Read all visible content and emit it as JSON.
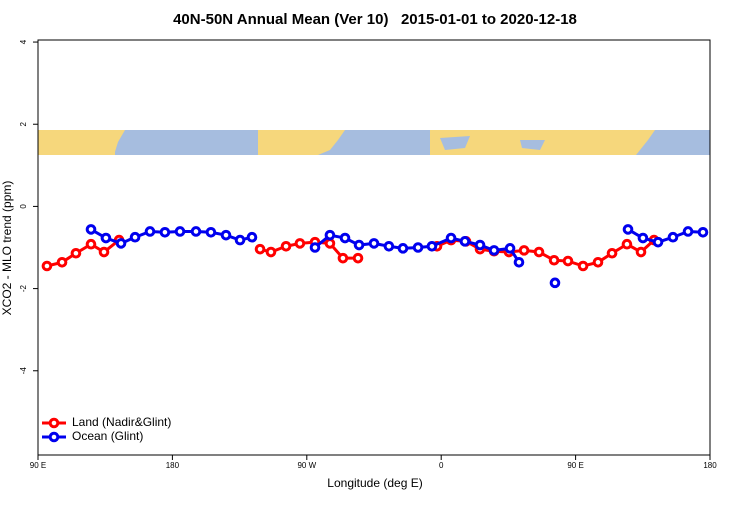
{
  "chart_data": {
    "type": "line",
    "title": "40N-50N Annual Mean (Ver 10)   2015-01-01 to 2020-12-18",
    "xlabel": "Longitude (deg E)",
    "ylabel": "XCO2 - MLO trend (ppm)",
    "xlim": [
      90,
      540
    ],
    "xticks": [
      {
        "value": 90,
        "label": "90 E"
      },
      {
        "value": 180,
        "label": "180"
      },
      {
        "value": 270,
        "label": "90 W"
      },
      {
        "value": 360,
        "label": "0"
      },
      {
        "value": 450,
        "label": "90 E"
      },
      {
        "value": 540,
        "label": "180"
      }
    ],
    "ylim": [
      -6.05,
      4.05
    ],
    "yticks": [
      4,
      2,
      0,
      -2,
      -4
    ],
    "grid": false,
    "legend": "bottom-left",
    "series": [
      {
        "name": "Land (Nadir&Glint)",
        "color": "#ff0000",
        "x": [
          96.0,
          106.1,
          115.4,
          125.5,
          134.2,
          144.3,
          null,
          238.7,
          246.0,
          256.1,
          265.4,
          275.5,
          285.5,
          294.2,
          304.3,
          null,
          357.2,
          366.6,
          376.6,
          386.0,
          395.4,
          405.4,
          415.5,
          425.5,
          435.6,
          444.9,
          455.0,
          465.0,
          474.4,
          484.4,
          493.8,
          502.5
        ],
        "values": [
          -1.45,
          -1.36,
          -1.14,
          -0.92,
          -1.11,
          -0.82,
          null,
          -1.04,
          -1.11,
          -0.97,
          -0.9,
          -0.87,
          -0.9,
          -1.26,
          -1.26,
          null,
          -0.97,
          -0.82,
          -0.85,
          -1.04,
          -1.09,
          -1.11,
          -1.07,
          -1.11,
          -1.31,
          -1.33,
          -1.45,
          -1.36,
          -1.14,
          -0.92,
          -1.11,
          -0.82
        ]
      },
      {
        "name": "Ocean (Glint)",
        "color": "#0000ee",
        "x": [
          125.5,
          135.5,
          145.6,
          155.0,
          165.0,
          175.0,
          185.1,
          195.8,
          205.8,
          215.9,
          225.3,
          233.3,
          null,
          275.5,
          285.5,
          295.6,
          305.0,
          315.0,
          325.0,
          334.4,
          344.5,
          353.8,
          366.6,
          375.9,
          386.0,
          395.4,
          406.1,
          412.1,
          null,
          436.2,
          null,
          485.1,
          495.1,
          505.2,
          515.2,
          525.3,
          535.3
        ],
        "values": [
          -0.56,
          -0.77,
          -0.9,
          -0.75,
          -0.61,
          -0.63,
          -0.61,
          -0.61,
          -0.63,
          -0.7,
          -0.82,
          -0.75,
          null,
          -1.0,
          -0.7,
          -0.77,
          -0.94,
          -0.9,
          -0.97,
          -1.02,
          -1.0,
          -0.97,
          -0.77,
          -0.85,
          -0.94,
          -1.07,
          -1.02,
          -1.36,
          null,
          -1.86,
          null,
          -0.56,
          -0.77,
          -0.87,
          -0.75,
          -0.61,
          -0.63
        ]
      }
    ]
  }
}
